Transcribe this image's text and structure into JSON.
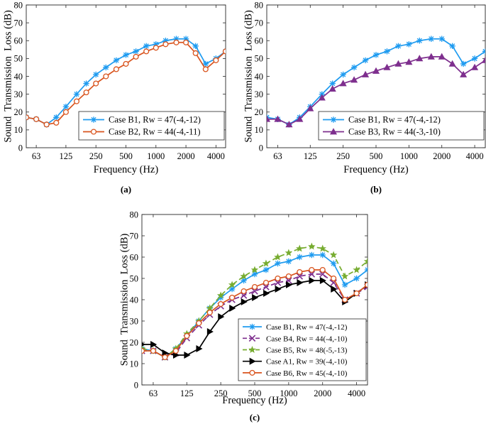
{
  "chart_data": [
    {
      "type": "line",
      "panel_label": "(a)",
      "xlabel": "Frequency (Hz)",
      "ylabel": "Sound  Transmission  Loss (dB)",
      "ylim": [
        0,
        80
      ],
      "yticks": [
        "0",
        "10",
        "20",
        "30",
        "40",
        "50",
        "60",
        "70",
        "80"
      ],
      "xticks": [
        "63",
        "125",
        "250",
        "500",
        "1000",
        "2000",
        "4000"
      ],
      "x": [
        50,
        63,
        80,
        100,
        125,
        160,
        200,
        250,
        315,
        400,
        500,
        630,
        800,
        1000,
        1250,
        1600,
        2000,
        2500,
        3150,
        4000,
        5000
      ],
      "grid": false,
      "legend_position": "center-right",
      "series": [
        {
          "name": "Case B1, Rw = 47(-4,-12)",
          "color": "#1e9bf0",
          "marker": "asterisk",
          "values": [
            17,
            16,
            13,
            17,
            23,
            30,
            36,
            41,
            45,
            49,
            52,
            54,
            57,
            58,
            60,
            61,
            61,
            57,
            47,
            50,
            54
          ]
        },
        {
          "name": "Case B2, Rw = 44(-4,-11)",
          "color": "#d9541e",
          "marker": "circle",
          "values": [
            17,
            16,
            13,
            14,
            20,
            26,
            31,
            36,
            40,
            44,
            47,
            51,
            54,
            56,
            58,
            59,
            59,
            53,
            44,
            49,
            54
          ]
        }
      ]
    },
    {
      "type": "line",
      "panel_label": "(b)",
      "xlabel": "Frequency (Hz)",
      "ylabel": "Sound  Transmission  Loss (dB)",
      "ylim": [
        0,
        80
      ],
      "yticks": [
        "0",
        "10",
        "20",
        "30",
        "40",
        "50",
        "60",
        "70",
        "80"
      ],
      "xticks": [
        "63",
        "125",
        "250",
        "500",
        "1000",
        "2000",
        "4000"
      ],
      "x": [
        50,
        63,
        80,
        100,
        125,
        160,
        200,
        250,
        315,
        400,
        500,
        630,
        800,
        1000,
        1250,
        1600,
        2000,
        2500,
        3150,
        4000,
        5000
      ],
      "grid": false,
      "legend_position": "center-right",
      "series": [
        {
          "name": "Case B1, Rw = 47(-4,-12)",
          "color": "#1e9bf0",
          "marker": "asterisk",
          "values": [
            17,
            16,
            13,
            17,
            23,
            30,
            36,
            41,
            45,
            49,
            52,
            54,
            57,
            58,
            60,
            61,
            61,
            57,
            47,
            50,
            54
          ]
        },
        {
          "name": "Case B3, Rw = 44(-3,-10)",
          "color": "#7e2f8e",
          "marker": "triangle-up",
          "values": [
            16,
            16,
            13,
            16,
            22,
            28,
            33,
            36,
            38,
            41,
            43,
            45,
            47,
            48,
            50,
            51,
            51,
            47,
            41,
            45,
            49
          ]
        }
      ]
    },
    {
      "type": "line",
      "panel_label": "(c)",
      "xlabel": "Frequency (Hz)",
      "ylabel": "Sound  Transmission  Loss (dB)",
      "ylim": [
        0,
        80
      ],
      "yticks": [
        "0",
        "10",
        "20",
        "30",
        "40",
        "50",
        "60",
        "70",
        "80"
      ],
      "xticks": [
        "63",
        "125",
        "250",
        "500",
        "1000",
        "2000",
        "4000"
      ],
      "x": [
        50,
        63,
        80,
        100,
        125,
        160,
        200,
        250,
        315,
        400,
        500,
        630,
        800,
        1000,
        1250,
        1600,
        2000,
        2500,
        3150,
        4000,
        5000
      ],
      "grid": false,
      "legend_position": "bottom-right",
      "series": [
        {
          "name": "Case B1, Rw = 47(-4,-12)",
          "color": "#1e9bf0",
          "marker": "asterisk",
          "dash": "solid",
          "values": [
            17,
            16,
            13,
            17,
            23,
            30,
            36,
            41,
            45,
            49,
            52,
            54,
            57,
            58,
            60,
            61,
            61,
            57,
            47,
            50,
            54
          ]
        },
        {
          "name": "Case B4, Rw = 44(-4,-10)",
          "color": "#7e2f8e",
          "marker": "x",
          "dash": "dashed",
          "values": [
            16,
            16,
            13,
            15,
            22,
            28,
            33,
            37,
            40,
            42,
            44,
            46,
            48,
            49,
            51,
            52,
            52,
            48,
            40,
            43,
            46
          ]
        },
        {
          "name": "Case B5, Rw = 48(-5,-13)",
          "color": "#77ac30",
          "marker": "star",
          "dash": "dashed",
          "values": [
            17,
            16,
            13,
            17,
            24,
            30,
            36,
            42,
            47,
            51,
            54,
            57,
            60,
            62,
            64,
            65,
            64,
            61,
            51,
            54,
            58
          ]
        },
        {
          "name": "Case A1, Rw = 39(-4,-10)",
          "color": "#000000",
          "marker": "triangle-right",
          "dash": "solid",
          "values": [
            19,
            19,
            15,
            14,
            14,
            17,
            25,
            32,
            36,
            39,
            41,
            43,
            45,
            47,
            48,
            49,
            49,
            45,
            39,
            43,
            47
          ]
        },
        {
          "name": "Case B6, Rw = 45(-4,-10)",
          "color": "#d9541e",
          "marker": "circle",
          "dash": "solid",
          "values": [
            16,
            16,
            13,
            16,
            23,
            29,
            34,
            38,
            41,
            44,
            46,
            48,
            50,
            51,
            53,
            54,
            54,
            50,
            40,
            43,
            47
          ]
        }
      ]
    }
  ]
}
